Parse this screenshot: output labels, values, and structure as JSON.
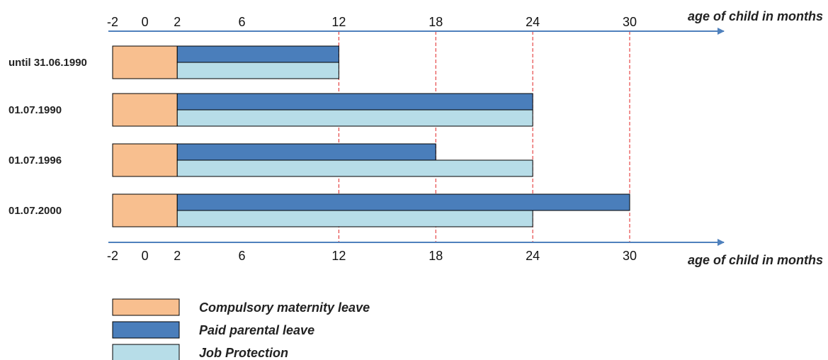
{
  "chart_data": {
    "type": "bar",
    "orientation": "horizontal-timeline",
    "xlabel": "age of child in months",
    "x_ticks": [
      -2,
      0,
      2,
      6,
      12,
      18,
      24,
      30
    ],
    "reference_lines": [
      12,
      18,
      24,
      30
    ],
    "xlim": [
      -2,
      30
    ],
    "series": [
      {
        "name": "Compulsory maternity leave",
        "color": "#f8bf8f"
      },
      {
        "name": "Paid parental leave",
        "color": "#4a7ebb"
      },
      {
        "name": "Job Protection",
        "color": "#b7dde8"
      }
    ],
    "rows": [
      {
        "label": "until 31.06.1990",
        "maternity": [
          -2,
          2
        ],
        "paid": [
          2,
          12
        ],
        "protection": [
          2,
          12
        ]
      },
      {
        "label": "01.07.1990",
        "maternity": [
          -2,
          2
        ],
        "paid": [
          2,
          24
        ],
        "protection": [
          2,
          24
        ]
      },
      {
        "label": "01.07.1996",
        "maternity": [
          -2,
          2
        ],
        "paid": [
          2,
          18
        ],
        "protection": [
          2,
          24
        ]
      },
      {
        "label": "01.07.2000",
        "maternity": [
          -2,
          2
        ],
        "paid": [
          2,
          30
        ],
        "protection": [
          2,
          24
        ]
      }
    ],
    "colors": {
      "axis": "#4f81bd",
      "reference_line": "#e02020",
      "outline": "#000000"
    }
  }
}
